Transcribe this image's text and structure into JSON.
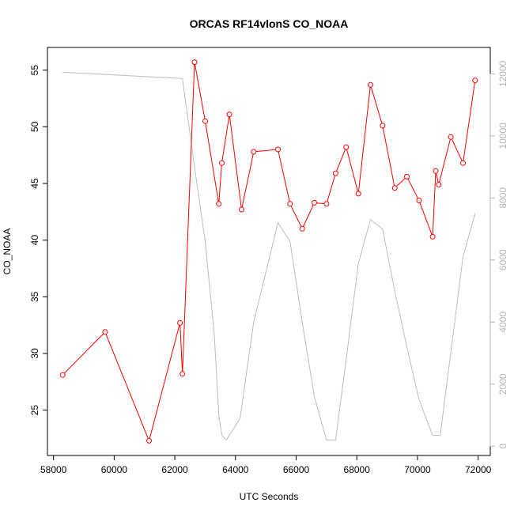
{
  "chart_data": {
    "type": "line",
    "title": "ORCAS RF14vlonS CO_NOAA",
    "xlabel": "UTC Seconds",
    "ylabel": "CO_NOAA",
    "xlim": [
      57800,
      72400
    ],
    "ylim": [
      21.0,
      57.0
    ],
    "y2lim": [
      -300,
      12850
    ],
    "x_ticks": [
      58000,
      60000,
      62000,
      64000,
      66000,
      68000,
      70000,
      72000
    ],
    "y_ticks": [
      25,
      30,
      35,
      40,
      45,
      50,
      55
    ],
    "y2_ticks": [
      0,
      2000,
      4000,
      6000,
      8000,
      10000,
      12000
    ],
    "grid": false,
    "series": [
      {
        "axis": "left",
        "color": "#ff0000",
        "marker": "open-circle",
        "x": [
          58300,
          59700,
          61150,
          62170,
          62250,
          62650,
          63000,
          63450,
          63550,
          63800,
          64200,
          64600,
          65400,
          65800,
          66200,
          66600,
          67000,
          67300,
          67650,
          68050,
          68450,
          68850,
          69250,
          69650,
          70050,
          70500,
          70600,
          70700,
          71100,
          71500,
          71900
        ],
        "values": [
          28.1,
          31.9,
          22.3,
          32.7,
          28.2,
          55.7,
          50.5,
          43.2,
          46.8,
          51.1,
          42.7,
          47.8,
          48.0,
          43.2,
          41.0,
          43.3,
          43.2,
          45.9,
          48.2,
          44.1,
          53.7,
          50.1,
          44.6,
          45.6,
          43.5,
          40.3,
          46.1,
          44.9,
          49.1,
          46.8,
          54.1
        ]
      },
      {
        "axis": "right",
        "color": "#bebebe",
        "marker": "none",
        "x": [
          58300,
          62250,
          62650,
          63000,
          63300,
          63450,
          63550,
          63700,
          64150,
          64600,
          65400,
          65800,
          66200,
          66600,
          67000,
          67300,
          67650,
          68050,
          68450,
          68850,
          69250,
          69650,
          70050,
          70500,
          70750,
          71500,
          71900
        ],
        "values": [
          12050,
          11850,
          9000,
          6600,
          3600,
          1000,
          350,
          200,
          900,
          4000,
          7200,
          6600,
          4000,
          1600,
          200,
          200,
          2800,
          5900,
          7300,
          7000,
          5000,
          3200,
          1500,
          350,
          350,
          6100,
          7500
        ]
      }
    ]
  }
}
